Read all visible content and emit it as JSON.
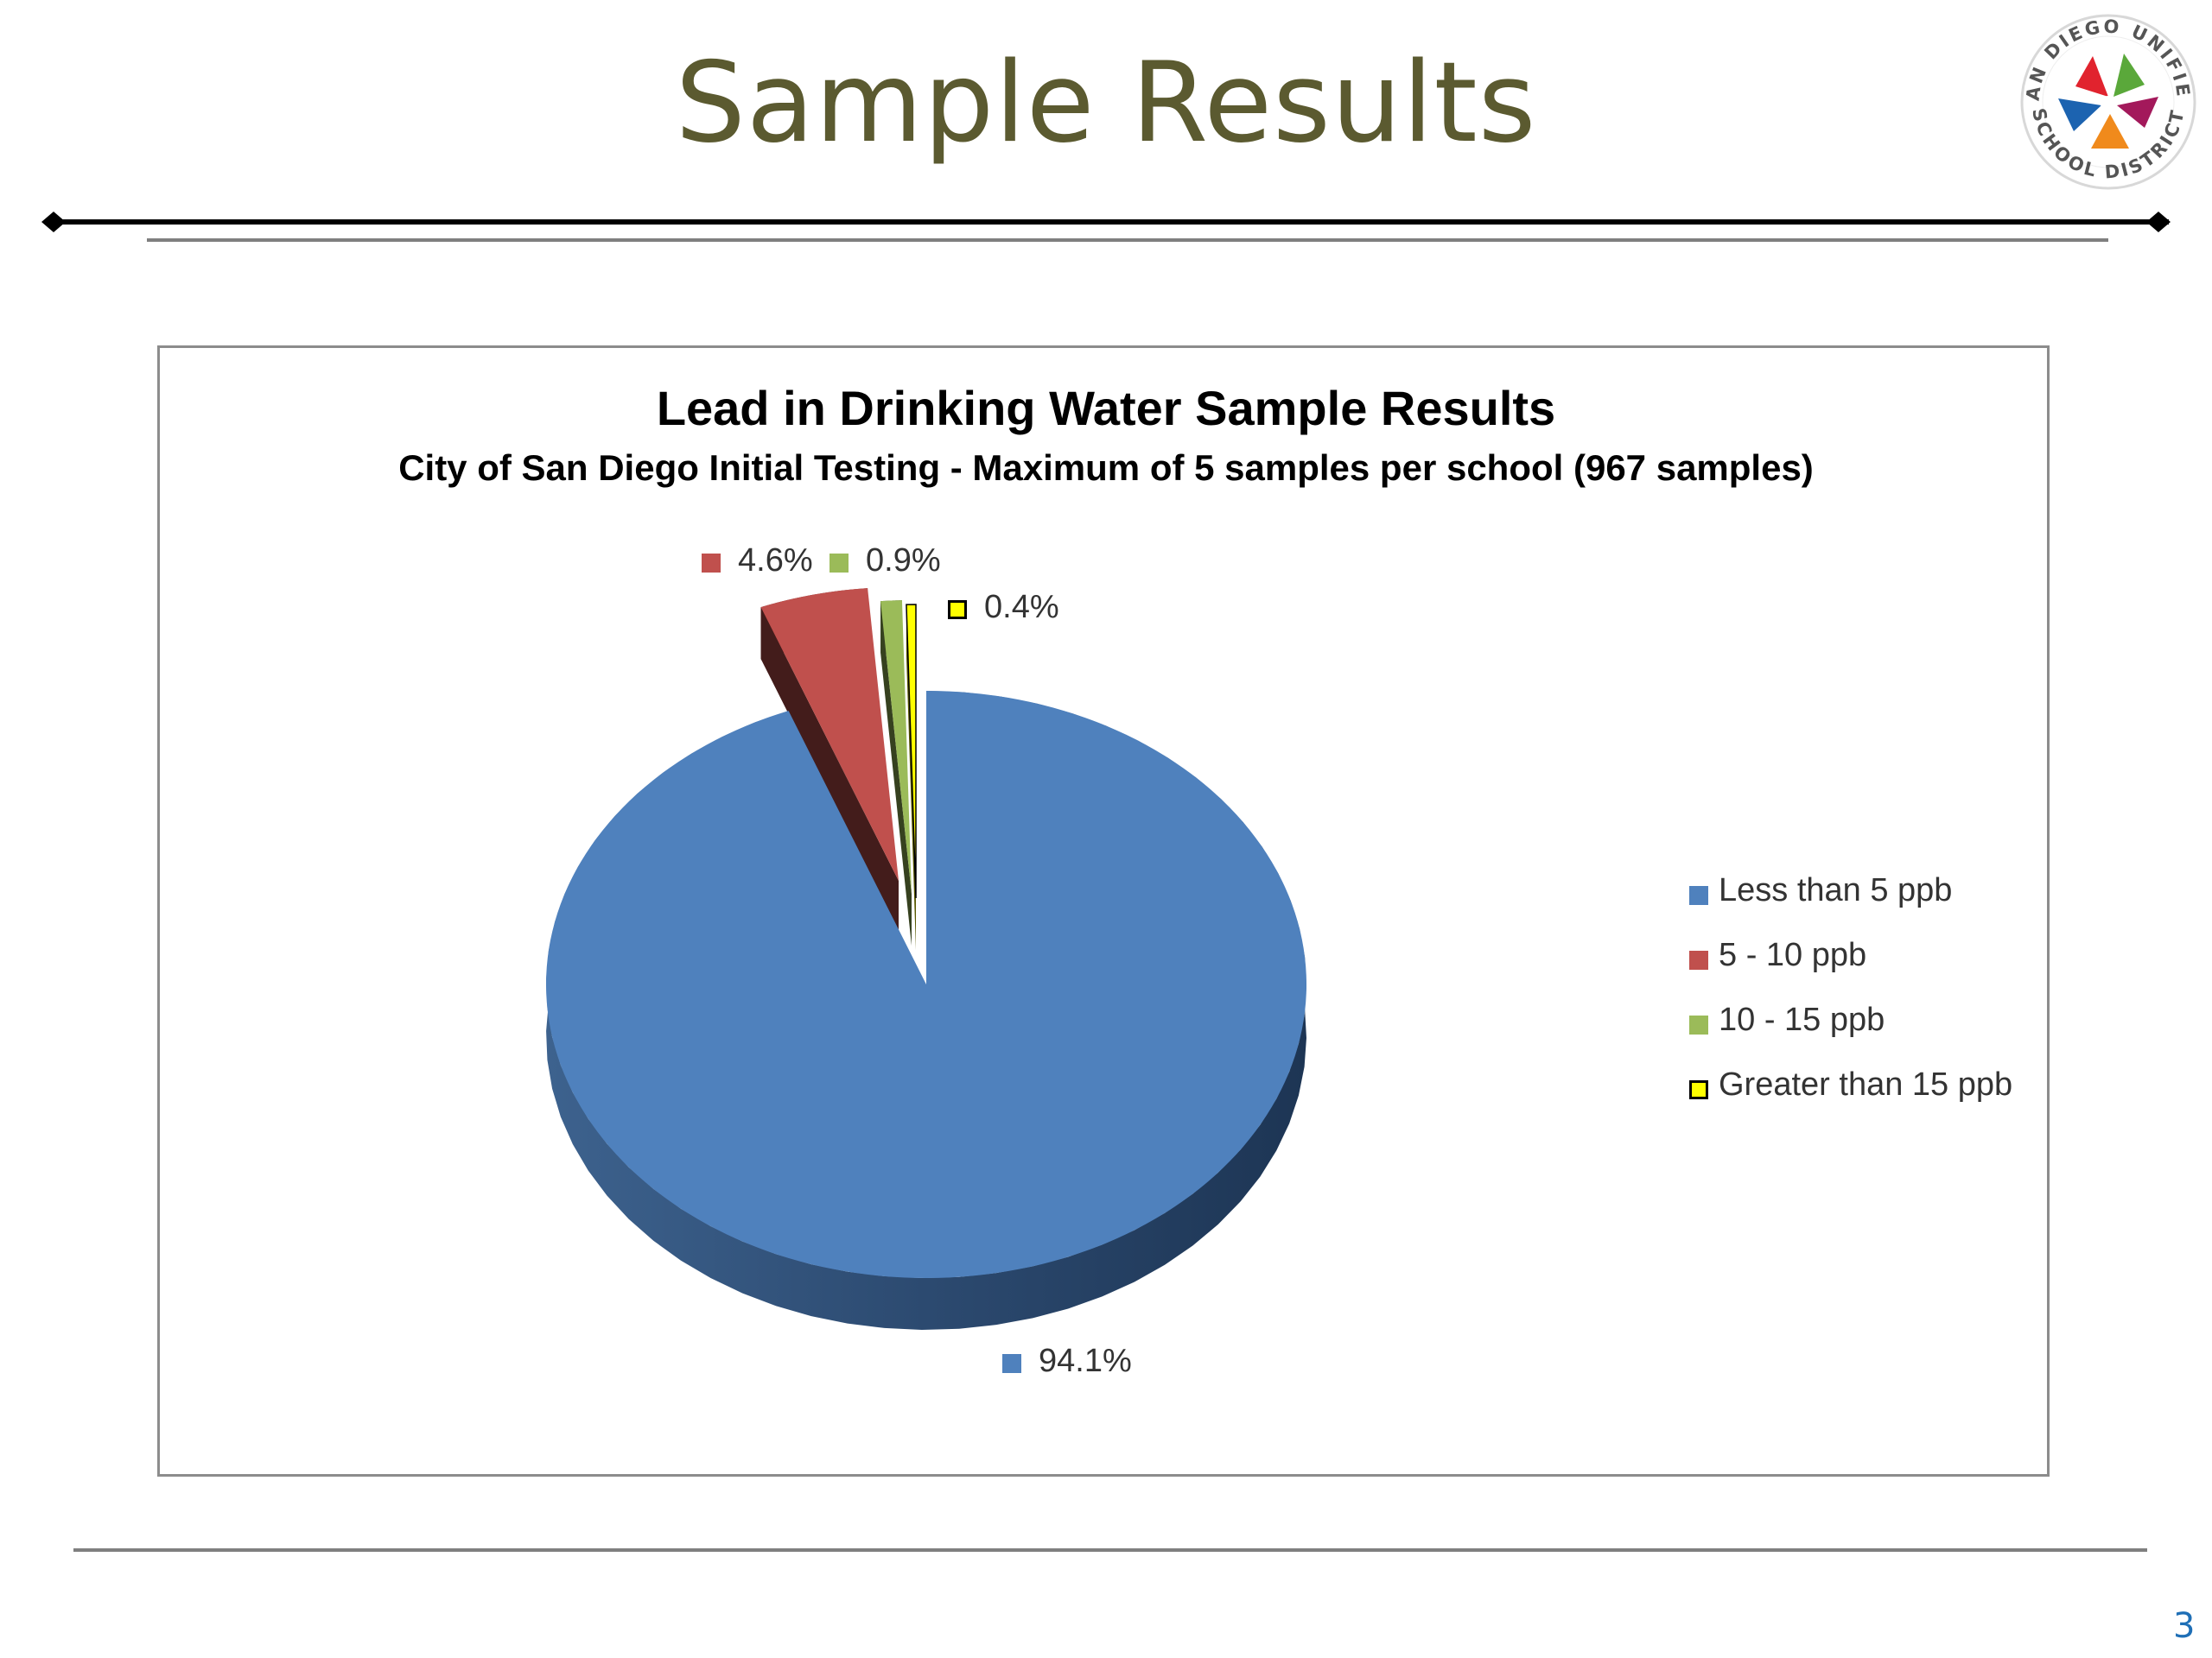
{
  "slide": {
    "title": "Sample Results",
    "page_number": "3",
    "logo": {
      "icon": "san-diego-unified-star-logo",
      "text_top": "SAN DIEGO UNIFIED",
      "text_bottom": "SCHOOL DISTRICT"
    },
    "colors": {
      "title": "#5b5a30",
      "page_number": "#1f6fb6"
    }
  },
  "chart_data": {
    "type": "pie",
    "title": "Lead in Drinking Water Sample Results",
    "subtitle": "City of San Diego Initial Testing - Maximum of 5 samples per school (967 samples)",
    "categories": [
      "Less than 5 ppb",
      "5 - 10 ppb",
      "10 - 15 ppb",
      "Greater than 15 ppb"
    ],
    "values": [
      94.1,
      4.6,
      0.9,
      0.4
    ],
    "data_labels": [
      "94.1%",
      "4.6%",
      "0.9%",
      "0.4%"
    ],
    "colors": [
      "#4f81bd",
      "#c0504d",
      "#9bbb59",
      "#ffff00"
    ],
    "exploded": [
      false,
      true,
      true,
      true
    ],
    "style": "3d",
    "legend_position": "right"
  }
}
